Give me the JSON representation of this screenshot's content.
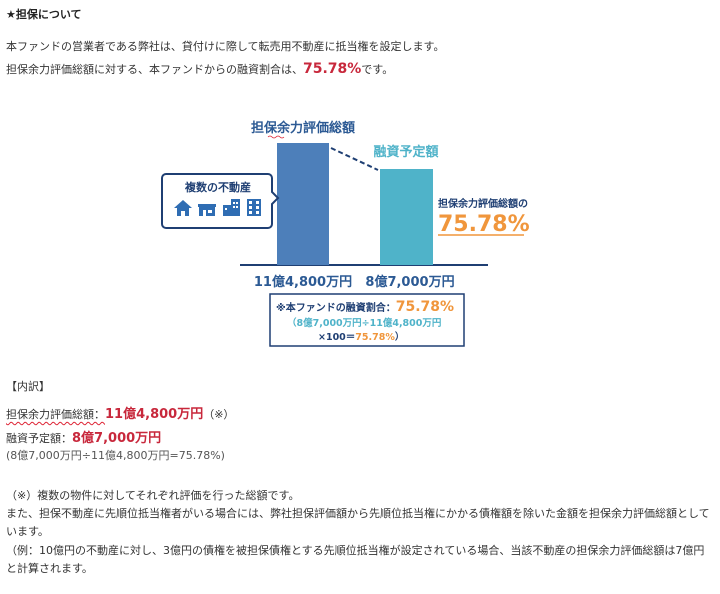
{
  "heading": "★担保について",
  "intro": {
    "line1": "本ファンドの営業者である弊社は、貸付けに際して転売用不動産に抵当権を設定します。",
    "line2_pre": "担保余力評価総額に対する、本ファンドからの融資割合は、",
    "line2_value": "75.78%",
    "line2_post": "です。"
  },
  "figure": {
    "label_left": "担保余力評価総額",
    "label_right": "融資予定額",
    "property_box_title": "複数の不動産",
    "ratio_label": "担保余力評価総額の",
    "ratio_value": "75.78%",
    "amount_left": "11億4,800万円",
    "amount_right": "8億7,000万円",
    "box_line1_pre": "※本ファンドの融資割合：",
    "box_line1_value": "75.78%",
    "box_line2": "（8億7,000万円÷11億4,800万円",
    "box_line3_pre": "×100＝",
    "box_line3_value": "75.78%",
    "box_line3_post": "）",
    "colors": {
      "bar_left": "#4d7fba",
      "bar_right": "#4fb3c9",
      "accent_orange": "#f0963c",
      "navy": "#1f3f73"
    }
  },
  "breakdown": {
    "title": "【内訳】",
    "row1_label": "担保余力評価総額：",
    "row1_value": "11億4,800万円",
    "row1_note": "（※）",
    "row2_label": "融資予定額：",
    "row2_value": "8億7,000万円",
    "row3": "(8億7,000万円÷11億4,800万円=75.78%)"
  },
  "notes": {
    "n1": "（※）複数の物件に対してそれぞれ評価を行った総額です。",
    "n2": "また、担保不動産に先順位抵当権者がいる場合には、弊社担保評価額から先順位抵当権にかかる債権額を除いた金額を担保余力評価総額としています。",
    "n3": "（例：10億円の不動産に対し、3億円の債権を被担保債権とする先順位抵当権が設定されている場合、当該不動産の担保余力評価総額は7億円と計算されます。"
  }
}
